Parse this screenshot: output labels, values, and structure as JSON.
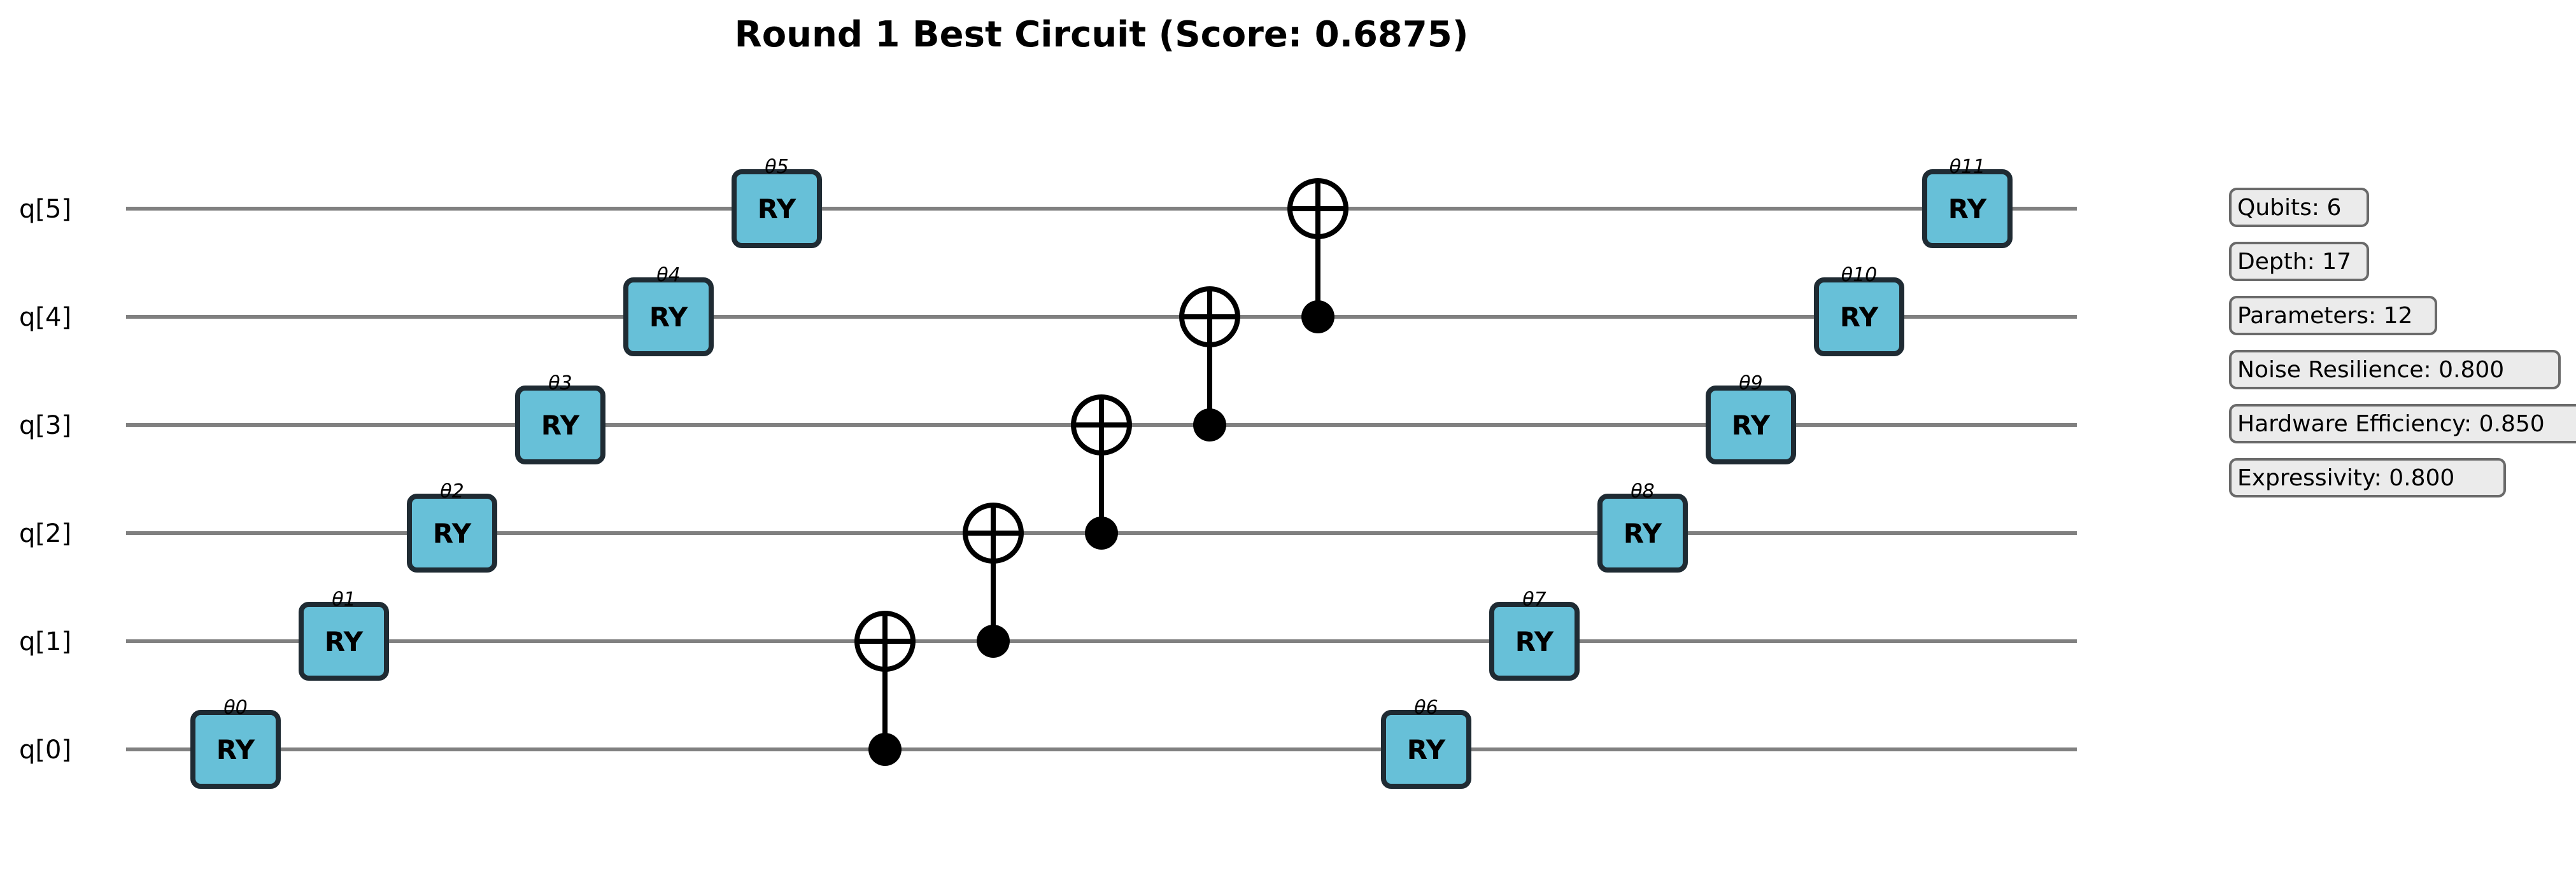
{
  "title": "Round 1 Best Circuit (Score: 0.6875)",
  "qubits": [
    "q[0]",
    "q[1]",
    "q[2]",
    "q[3]",
    "q[4]",
    "q[5]"
  ],
  "colors": {
    "wire": "#808080",
    "gate_fill": "#67c0d8",
    "gate_stroke": "#1f2b33",
    "control": "#000000",
    "metric_fill": "#ebebeb",
    "metric_stroke": "#6a6a6a"
  },
  "gates": [
    {
      "type": "RY",
      "qubit": 0,
      "param": "θ0"
    },
    {
      "type": "RY",
      "qubit": 1,
      "param": "θ1"
    },
    {
      "type": "RY",
      "qubit": 2,
      "param": "θ2"
    },
    {
      "type": "RY",
      "qubit": 3,
      "param": "θ3"
    },
    {
      "type": "RY",
      "qubit": 4,
      "param": "θ4"
    },
    {
      "type": "RY",
      "qubit": 5,
      "param": "θ5"
    },
    {
      "type": "CNOT",
      "control": 0,
      "target": 1
    },
    {
      "type": "CNOT",
      "control": 1,
      "target": 2
    },
    {
      "type": "CNOT",
      "control": 2,
      "target": 3
    },
    {
      "type": "CNOT",
      "control": 3,
      "target": 4
    },
    {
      "type": "CNOT",
      "control": 4,
      "target": 5
    },
    {
      "type": "RY",
      "qubit": 0,
      "param": "θ6"
    },
    {
      "type": "RY",
      "qubit": 1,
      "param": "θ7"
    },
    {
      "type": "RY",
      "qubit": 2,
      "param": "θ8"
    },
    {
      "type": "RY",
      "qubit": 3,
      "param": "θ9"
    },
    {
      "type": "RY",
      "qubit": 4,
      "param": "θ10"
    },
    {
      "type": "RY",
      "qubit": 5,
      "param": "θ11"
    }
  ],
  "metrics": [
    "Qubits: 6",
    "Depth: 17",
    "Parameters: 12",
    "Noise Resilience: 0.800",
    "Hardware Efficiency: 0.850",
    "Expressivity: 0.800"
  ]
}
